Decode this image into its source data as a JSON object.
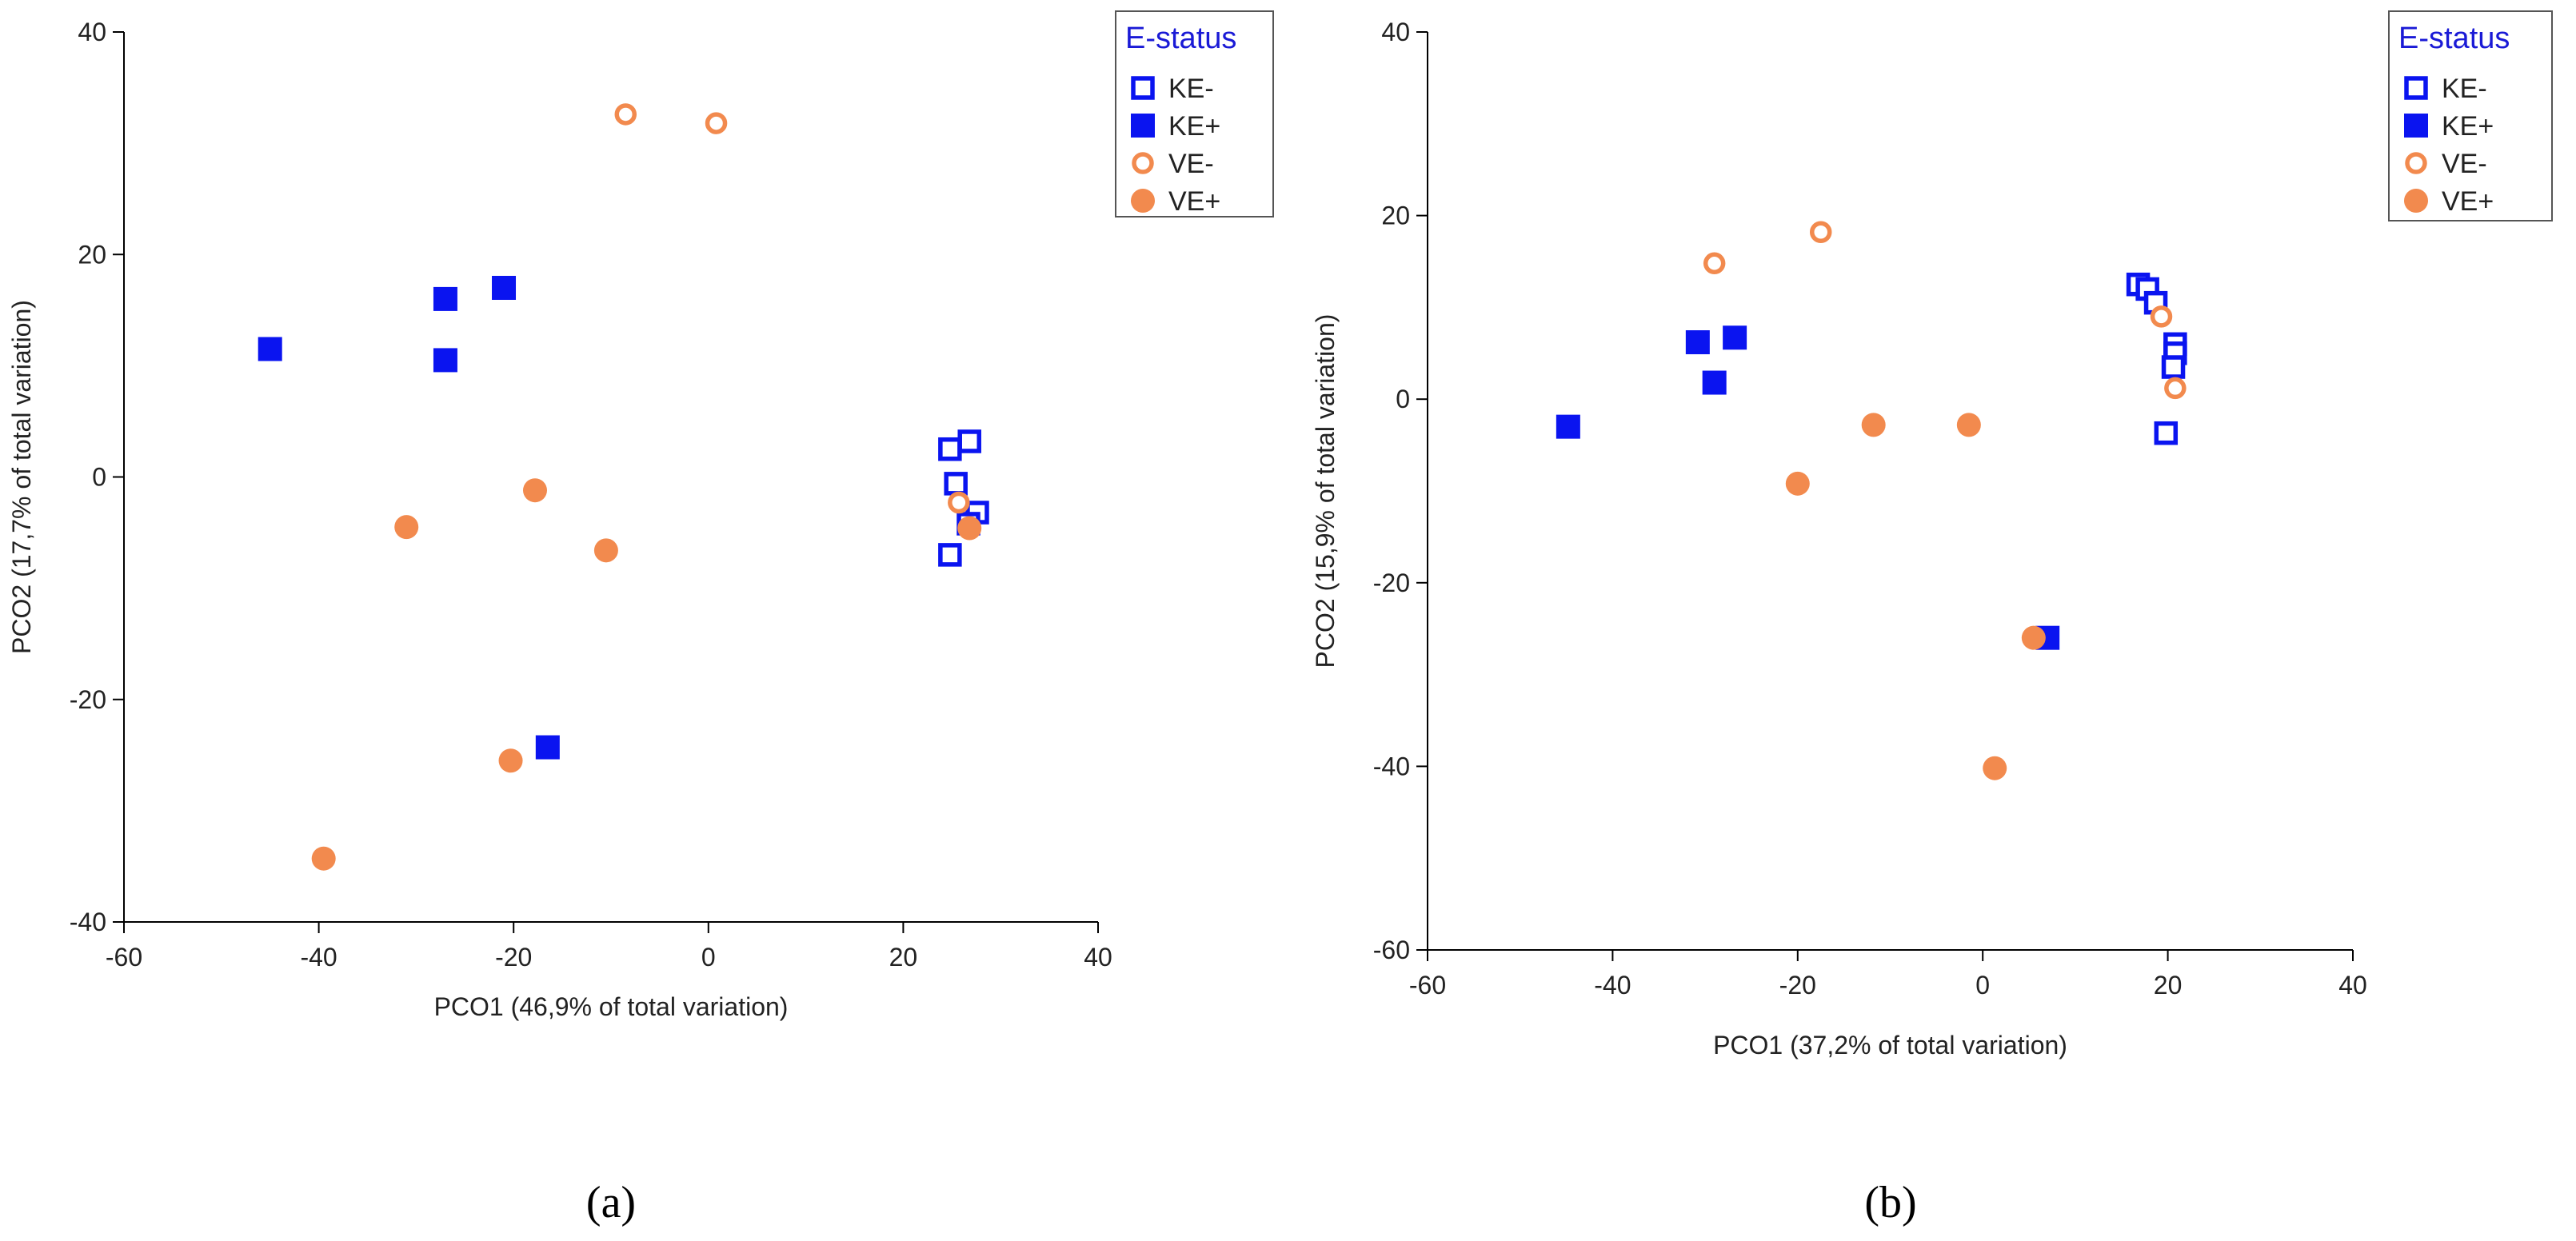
{
  "colors": {
    "ke": "#0a14f0",
    "ve": "#f28a4e",
    "axis": "#000000",
    "legendTitle": "#1a1ad6"
  },
  "chart_data": [
    {
      "type": "scatter",
      "panel": "a",
      "caption": "(a)",
      "xlabel": "PCO1 (46,9% of total variation)",
      "ylabel": "PCO2 (17,7% of total variation)",
      "xlim": [
        -60,
        40
      ],
      "ylim": [
        -40,
        40
      ],
      "xticks": [
        -60,
        -40,
        -20,
        0,
        20,
        40
      ],
      "yticks": [
        -40,
        -20,
        0,
        20,
        40
      ],
      "grid": false,
      "legend": {
        "title": "E-status",
        "position": "top-right",
        "entries": [
          {
            "label": "KE-",
            "series": "KE-"
          },
          {
            "label": "KE+",
            "series": "KE+"
          },
          {
            "label": "VE-",
            "series": "VE-"
          },
          {
            "label": "VE+",
            "series": "VE+"
          }
        ]
      },
      "series": [
        {
          "name": "KE-",
          "marker": "square",
          "filled": false,
          "points": [
            [
              24.8,
              2.5
            ],
            [
              26.8,
              3.2
            ],
            [
              25.4,
              -0.6
            ],
            [
              27.6,
              -3.2
            ],
            [
              26.7,
              -4.2
            ],
            [
              24.8,
              -7.0
            ]
          ]
        },
        {
          "name": "KE+",
          "marker": "square",
          "filled": true,
          "points": [
            [
              -45,
              11.5
            ],
            [
              -27,
              16.0
            ],
            [
              -21,
              17.0
            ],
            [
              -27,
              10.5
            ],
            [
              -16.5,
              -24.3
            ]
          ]
        },
        {
          "name": "VE-",
          "marker": "circle",
          "filled": false,
          "points": [
            [
              -8.5,
              32.6
            ],
            [
              0.8,
              31.8
            ],
            [
              25.7,
              -2.3
            ]
          ]
        },
        {
          "name": "VE+",
          "marker": "circle",
          "filled": true,
          "points": [
            [
              -31,
              -4.5
            ],
            [
              -17.8,
              -1.2
            ],
            [
              -10.5,
              -6.6
            ],
            [
              26.8,
              -4.6
            ],
            [
              -20.3,
              -25.5
            ],
            [
              -39.5,
              -34.3
            ]
          ]
        }
      ]
    },
    {
      "type": "scatter",
      "panel": "b",
      "caption": "(b)",
      "xlabel": "PCO1 (37,2% of total variation)",
      "ylabel": "PCO2 (15,9% of total variation)",
      "xlim": [
        -60,
        40
      ],
      "ylim": [
        -60,
        40
      ],
      "xticks": [
        -60,
        -40,
        -20,
        0,
        20,
        40
      ],
      "yticks": [
        -60,
        -40,
        -20,
        0,
        20,
        40
      ],
      "grid": false,
      "legend": {
        "title": "E-status",
        "position": "top-right",
        "entries": [
          {
            "label": "KE-",
            "series": "KE-"
          },
          {
            "label": "KE+",
            "series": "KE+"
          },
          {
            "label": "VE-",
            "series": "VE-"
          },
          {
            "label": "VE+",
            "series": "VE+"
          }
        ]
      },
      "series": [
        {
          "name": "KE-",
          "marker": "square",
          "filled": false,
          "points": [
            [
              16.8,
              12.5
            ],
            [
              17.8,
              12.0
            ],
            [
              18.7,
              10.5
            ],
            [
              20.8,
              6.0
            ],
            [
              20.8,
              5.0
            ],
            [
              20.6,
              3.5
            ],
            [
              19.8,
              -3.7
            ]
          ]
        },
        {
          "name": "KE+",
          "marker": "square",
          "filled": true,
          "points": [
            [
              -44.8,
              -3.0
            ],
            [
              -30.8,
              6.2
            ],
            [
              -26.8,
              6.7
            ],
            [
              -29.0,
              1.8
            ],
            [
              7.0,
              -26.0
            ]
          ]
        },
        {
          "name": "VE-",
          "marker": "circle",
          "filled": false,
          "points": [
            [
              -29.0,
              14.8
            ],
            [
              -17.5,
              18.2
            ],
            [
              19.3,
              9.0
            ],
            [
              20.8,
              1.2
            ]
          ]
        },
        {
          "name": "VE+",
          "marker": "circle",
          "filled": true,
          "points": [
            [
              -11.8,
              -2.8
            ],
            [
              -1.5,
              -2.8
            ],
            [
              -20.0,
              -9.2
            ],
            [
              5.5,
              -26.0
            ],
            [
              1.3,
              -40.2
            ]
          ]
        }
      ]
    }
  ]
}
